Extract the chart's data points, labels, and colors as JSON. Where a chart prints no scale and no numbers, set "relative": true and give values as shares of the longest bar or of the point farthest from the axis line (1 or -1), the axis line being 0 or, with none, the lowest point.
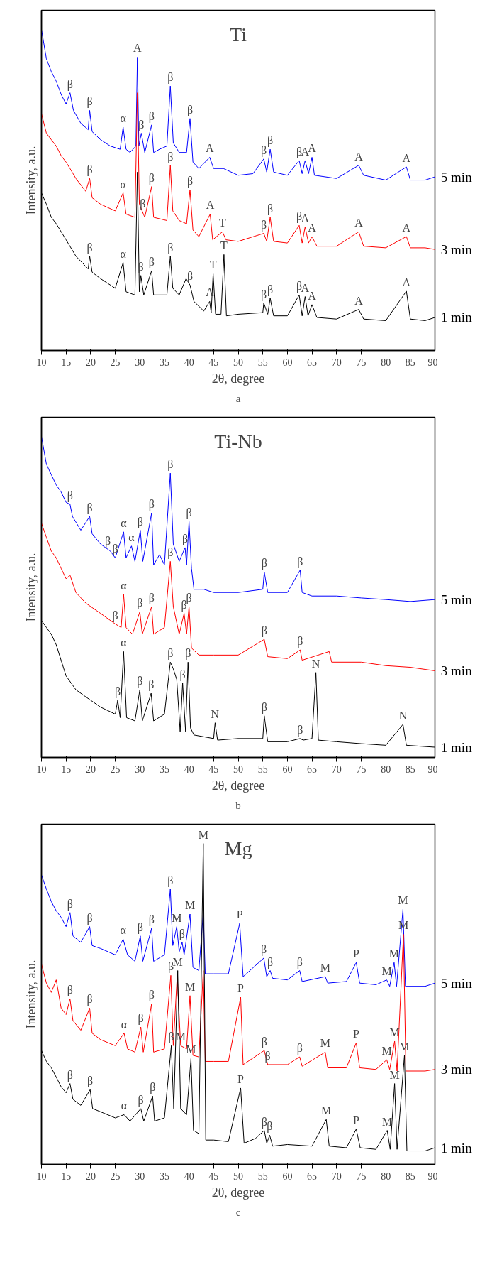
{
  "chart_data": [
    {
      "type": "line",
      "title": "Ti",
      "xlabel": "2θ, degree",
      "ylabel": "Intensity, a.u.",
      "relative": true,
      "xlim": [
        10,
        90
      ],
      "xticks": [
        10,
        15,
        20,
        25,
        30,
        35,
        40,
        45,
        50,
        55,
        60,
        65,
        70,
        75,
        80,
        85,
        90
      ],
      "series": [
        {
          "name": "5 min",
          "color": "#0000ff",
          "x": [
            10,
            11,
            12,
            13,
            14,
            15,
            15.8,
            16.5,
            18,
            19.5,
            19.8,
            20.3,
            22,
            24,
            26,
            26.6,
            27.2,
            28,
            29.2,
            29.5,
            29.8,
            30.3,
            31,
            32.4,
            32.8,
            34,
            35.5,
            36.2,
            36.8,
            38,
            39.5,
            40.2,
            40.8,
            42,
            44.2,
            45,
            47,
            50,
            53,
            55.2,
            55.8,
            56.5,
            57.2,
            60,
            62.4,
            63,
            63.6,
            64.3,
            65,
            65.5,
            70,
            74.5,
            75.5,
            80,
            84.2,
            85,
            88,
            90
          ],
          "values": [
            1.0,
            0.909,
            0.869,
            0.839,
            0.798,
            0.768,
            0.803,
            0.748,
            0.708,
            0.688,
            0.748,
            0.682,
            0.657,
            0.637,
            0.627,
            0.696,
            0.627,
            0.617,
            0.637,
            0.914,
            0.637,
            0.677,
            0.617,
            0.703,
            0.617,
            0.627,
            0.637,
            0.824,
            0.647,
            0.617,
            0.617,
            0.723,
            0.587,
            0.567,
            0.602,
            0.567,
            0.567,
            0.546,
            0.551,
            0.597,
            0.556,
            0.627,
            0.556,
            0.546,
            0.592,
            0.551,
            0.592,
            0.551,
            0.602,
            0.546,
            0.536,
            0.577,
            0.546,
            0.531,
            0.572,
            0.531,
            0.531,
            0.541
          ]
        },
        {
          "name": "3 min",
          "color": "#ff0000",
          "x": [
            10,
            11,
            12,
            13,
            14,
            15,
            15.8,
            17,
            19,
            19.8,
            20.3,
            22,
            25,
            26.6,
            27.2,
            29,
            29.5,
            29.9,
            31,
            32.4,
            32.8,
            35.5,
            36.2,
            36.7,
            38,
            39.5,
            40.2,
            40.8,
            42,
            44.3,
            44.8,
            46.8,
            47.5,
            50,
            55.2,
            55.8,
            56.5,
            57.2,
            60,
            62.4,
            63,
            63.6,
            64.3,
            65,
            66,
            70,
            74.5,
            75.5,
            80,
            84.2,
            85,
            88,
            90
          ],
          "values": [
            0.738,
            0.677,
            0.657,
            0.637,
            0.607,
            0.587,
            0.567,
            0.536,
            0.496,
            0.536,
            0.476,
            0.456,
            0.435,
            0.491,
            0.425,
            0.415,
            0.803,
            0.456,
            0.415,
            0.511,
            0.415,
            0.405,
            0.577,
            0.435,
            0.405,
            0.395,
            0.501,
            0.375,
            0.355,
            0.425,
            0.345,
            0.37,
            0.345,
            0.34,
            0.365,
            0.34,
            0.415,
            0.34,
            0.335,
            0.39,
            0.335,
            0.385,
            0.335,
            0.355,
            0.325,
            0.325,
            0.37,
            0.325,
            0.32,
            0.355,
            0.32,
            0.32,
            0.315
          ]
        },
        {
          "name": "1 min",
          "color": "#000000",
          "x": [
            10,
            11,
            12,
            13,
            15,
            17,
            19.5,
            19.8,
            20.3,
            22,
            25,
            26.6,
            27.2,
            29,
            29.5,
            29.9,
            30.2,
            30.8,
            32.4,
            32.8,
            35.5,
            36.2,
            36.7,
            38,
            39.4,
            40.2,
            41,
            43,
            44.2,
            44.5,
            44.9,
            45.4,
            46.5,
            47.1,
            47.6,
            50,
            55,
            55.2,
            56,
            56.5,
            57.2,
            60,
            62.4,
            63,
            63.6,
            64.2,
            65,
            66,
            70,
            74.5,
            75.5,
            80,
            84.2,
            85,
            88,
            90
          ],
          "values": [
            0.491,
            0.456,
            0.415,
            0.395,
            0.345,
            0.294,
            0.254,
            0.294,
            0.244,
            0.224,
            0.194,
            0.274,
            0.183,
            0.173,
            0.556,
            0.183,
            0.234,
            0.173,
            0.249,
            0.173,
            0.173,
            0.294,
            0.194,
            0.173,
            0.224,
            0.204,
            0.153,
            0.123,
            0.153,
            0.118,
            0.239,
            0.113,
            0.113,
            0.299,
            0.108,
            0.113,
            0.118,
            0.148,
            0.113,
            0.163,
            0.108,
            0.108,
            0.173,
            0.108,
            0.168,
            0.108,
            0.143,
            0.103,
            0.098,
            0.128,
            0.098,
            0.093,
            0.185,
            0.098,
            0.093,
            0.103
          ]
        }
      ],
      "annotations": [
        {
          "text": "β",
          "x": 15.8,
          "y": 0.803
        },
        {
          "text": "β",
          "x": 19.8,
          "y": 0.748
        },
        {
          "text": "α",
          "x": 26.6,
          "y": 0.696
        },
        {
          "text": "A",
          "x": 29.5,
          "y": 0.914
        },
        {
          "text": "β",
          "x": 30.3,
          "y": 0.677
        },
        {
          "text": "β",
          "x": 32.4,
          "y": 0.703
        },
        {
          "text": "β",
          "x": 36.2,
          "y": 0.824
        },
        {
          "text": "β",
          "x": 40.2,
          "y": 0.723
        },
        {
          "text": "A",
          "x": 44.2,
          "y": 0.602
        },
        {
          "text": "β",
          "x": 55.2,
          "y": 0.597
        },
        {
          "text": "β",
          "x": 56.5,
          "y": 0.627
        },
        {
          "text": "β",
          "x": 62.4,
          "y": 0.592
        },
        {
          "text": "A",
          "x": 63.6,
          "y": 0.592
        },
        {
          "text": "A",
          "x": 65,
          "y": 0.602
        },
        {
          "text": "A",
          "x": 74.5,
          "y": 0.577
        },
        {
          "text": "A",
          "x": 84.2,
          "y": 0.572
        },
        {
          "text": "β",
          "x": 19.8,
          "y": 0.536
        },
        {
          "text": "α",
          "x": 26.6,
          "y": 0.491
        },
        {
          "text": "β",
          "x": 30.6,
          "y": 0.43
        },
        {
          "text": "β",
          "x": 32.4,
          "y": 0.511
        },
        {
          "text": "β",
          "x": 36.2,
          "y": 0.577
        },
        {
          "text": "β",
          "x": 40.2,
          "y": 0.501
        },
        {
          "text": "A",
          "x": 44.3,
          "y": 0.425
        },
        {
          "text": "T",
          "x": 46.8,
          "y": 0.37
        },
        {
          "text": "β",
          "x": 55.2,
          "y": 0.365
        },
        {
          "text": "β",
          "x": 56.5,
          "y": 0.415
        },
        {
          "text": "β",
          "x": 62.4,
          "y": 0.39
        },
        {
          "text": "A",
          "x": 63.6,
          "y": 0.385
        },
        {
          "text": "A",
          "x": 65,
          "y": 0.355
        },
        {
          "text": "A",
          "x": 74.5,
          "y": 0.37
        },
        {
          "text": "A",
          "x": 84.2,
          "y": 0.355
        },
        {
          "text": "β",
          "x": 19.8,
          "y": 0.294
        },
        {
          "text": "α",
          "x": 26.6,
          "y": 0.274
        },
        {
          "text": "β",
          "x": 30.2,
          "y": 0.234
        },
        {
          "text": "β",
          "x": 32.4,
          "y": 0.249
        },
        {
          "text": "β",
          "x": 36.2,
          "y": 0.294
        },
        {
          "text": "β",
          "x": 40.2,
          "y": 0.204
        },
        {
          "text": "A",
          "x": 44.2,
          "y": 0.153
        },
        {
          "text": "T",
          "x": 44.9,
          "y": 0.239
        },
        {
          "text": "T",
          "x": 47.1,
          "y": 0.299
        },
        {
          "text": "β",
          "x": 55.2,
          "y": 0.148
        },
        {
          "text": "β",
          "x": 56.5,
          "y": 0.163
        },
        {
          "text": "β",
          "x": 62.4,
          "y": 0.173
        },
        {
          "text": "A",
          "x": 63.6,
          "y": 0.168
        },
        {
          "text": "A",
          "x": 65,
          "y": 0.143
        },
        {
          "text": "A",
          "x": 74.5,
          "y": 0.128
        },
        {
          "text": "A",
          "x": 84.2,
          "y": 0.185
        },
        "a"
      ]
    },
    {
      "type": "line",
      "title": "Ti-Nb",
      "xlabel": "2θ, degree",
      "ylabel": "Intensity, a.u.",
      "relative": true,
      "xlim": [
        10,
        90
      ],
      "xticks": [
        10,
        15,
        20,
        25,
        30,
        35,
        40,
        45,
        50,
        55,
        60,
        65,
        70,
        75,
        80,
        85,
        90
      ],
      "series": [
        {
          "name": "5 min",
          "color": "#0000ff",
          "x": [
            10,
            11,
            12,
            13,
            14,
            15,
            15.8,
            16.3,
            18,
            19.8,
            20.3,
            22,
            24,
            25,
            26.7,
            27.2,
            28.3,
            29,
            30.1,
            30.6,
            32.4,
            32.8,
            34,
            35,
            36.2,
            36.8,
            38,
            39.2,
            39.5,
            40,
            40.5,
            41,
            43,
            45,
            50,
            55,
            55.3,
            56,
            60,
            62.6,
            63,
            65,
            70,
            75,
            80,
            85,
            90
          ],
          "values": [
            1.0,
            0.914,
            0.881,
            0.849,
            0.827,
            0.795,
            0.789,
            0.751,
            0.708,
            0.751,
            0.697,
            0.665,
            0.643,
            0.622,
            0.703,
            0.622,
            0.659,
            0.611,
            0.708,
            0.611,
            0.762,
            0.6,
            0.632,
            0.6,
            0.886,
            0.665,
            0.611,
            0.654,
            0.6,
            0.735,
            0.589,
            0.524,
            0.524,
            0.514,
            0.514,
            0.524,
            0.578,
            0.514,
            0.514,
            0.584,
            0.514,
            0.503,
            0.503,
            0.497,
            0.492,
            0.486,
            0.492
          ]
        },
        {
          "name": "3 min",
          "color": "#ff0000",
          "x": [
            10,
            11,
            12,
            13,
            14,
            15,
            15.8,
            17,
            19,
            22,
            25,
            26.2,
            26.7,
            27.2,
            28.5,
            30,
            30.5,
            32.4,
            32.8,
            35,
            36.2,
            36.8,
            38,
            39,
            39.5,
            40,
            40.5,
            42,
            45,
            50,
            55.3,
            56,
            60,
            62.6,
            63,
            68.5,
            69,
            75,
            80,
            85,
            90
          ],
          "values": [
            0.73,
            0.686,
            0.643,
            0.622,
            0.589,
            0.557,
            0.568,
            0.514,
            0.481,
            0.449,
            0.416,
            0.405,
            0.508,
            0.405,
            0.384,
            0.454,
            0.384,
            0.47,
            0.384,
            0.405,
            0.611,
            0.47,
            0.384,
            0.449,
            0.384,
            0.47,
            0.341,
            0.319,
            0.319,
            0.319,
            0.368,
            0.314,
            0.308,
            0.335,
            0.303,
            0.33,
            0.297,
            0.297,
            0.286,
            0.281,
            0.27
          ]
        },
        {
          "name": "1 min",
          "color": "#000000",
          "x": [
            10,
            11,
            12,
            13,
            15,
            17,
            19,
            22,
            25,
            25.5,
            26,
            26.7,
            27.3,
            29,
            30,
            30.5,
            32.3,
            32.8,
            35,
            36.2,
            36.8,
            37.5,
            38.2,
            38.7,
            39.3,
            39.8,
            40.3,
            41,
            45,
            45.3,
            45.8,
            50,
            55,
            55.3,
            56,
            60,
            62.6,
            63.2,
            65,
            65.8,
            66.3,
            70,
            75,
            80,
            83.5,
            84.2,
            90
          ],
          "values": [
            0.427,
            0.405,
            0.384,
            0.351,
            0.254,
            0.211,
            0.189,
            0.157,
            0.135,
            0.178,
            0.124,
            0.33,
            0.124,
            0.114,
            0.211,
            0.114,
            0.2,
            0.114,
            0.135,
            0.297,
            0.276,
            0.243,
            0.081,
            0.232,
            0.081,
            0.297,
            0.092,
            0.07,
            0.059,
            0.108,
            0.054,
            0.059,
            0.059,
            0.13,
            0.049,
            0.049,
            0.059,
            0.054,
            0.059,
            0.265,
            0.054,
            0.049,
            0.043,
            0.038,
            0.103,
            0.038,
            0.032
          ]
        }
      ],
      "annotations": [
        {
          "text": "β",
          "x": 15.8,
          "y": 0.789
        },
        {
          "text": "β",
          "x": 19.8,
          "y": 0.751
        },
        {
          "text": "β",
          "x": 23.5,
          "y": 0.648
        },
        {
          "text": "β",
          "x": 25,
          "y": 0.622
        },
        {
          "text": "α",
          "x": 26.7,
          "y": 0.703
        },
        {
          "text": "α",
          "x": 28.3,
          "y": 0.659
        },
        {
          "text": "β",
          "x": 30.1,
          "y": 0.708
        },
        {
          "text": "β",
          "x": 32.4,
          "y": 0.762
        },
        {
          "text": "β",
          "x": 36.2,
          "y": 0.886
        },
        {
          "text": "β",
          "x": 39.2,
          "y": 0.654
        },
        {
          "text": "β",
          "x": 40,
          "y": 0.735
        },
        {
          "text": "β",
          "x": 55.3,
          "y": 0.578
        },
        {
          "text": "β",
          "x": 62.6,
          "y": 0.584
        },
        {
          "text": "β",
          "x": 25,
          "y": 0.416
        },
        {
          "text": "α",
          "x": 26.7,
          "y": 0.508
        },
        {
          "text": "β",
          "x": 30,
          "y": 0.454
        },
        {
          "text": "β",
          "x": 32.4,
          "y": 0.47
        },
        {
          "text": "β",
          "x": 36.2,
          "y": 0.611
        },
        {
          "text": "β",
          "x": 39,
          "y": 0.449
        },
        {
          "text": "β",
          "x": 40,
          "y": 0.47
        },
        {
          "text": "β",
          "x": 55.3,
          "y": 0.368
        },
        {
          "text": "β",
          "x": 62.6,
          "y": 0.335
        },
        {
          "text": "β",
          "x": 25.5,
          "y": 0.178
        },
        {
          "text": "α",
          "x": 26.7,
          "y": 0.33
        },
        {
          "text": "β",
          "x": 30,
          "y": 0.211
        },
        {
          "text": "β",
          "x": 32.3,
          "y": 0.2
        },
        {
          "text": "β",
          "x": 36.2,
          "y": 0.297
        },
        {
          "text": "β",
          "x": 38.7,
          "y": 0.232
        },
        {
          "text": "β",
          "x": 39.8,
          "y": 0.297
        },
        {
          "text": "N",
          "x": 45.3,
          "y": 0.108
        },
        {
          "text": "β",
          "x": 55.3,
          "y": 0.13
        },
        {
          "text": "β",
          "x": 62.6,
          "y": 0.059
        },
        {
          "text": "N",
          "x": 65.8,
          "y": 0.265
        },
        {
          "text": "N",
          "x": 83.5,
          "y": 0.103
        },
        "b"
      ]
    },
    {
      "type": "line",
      "title": "Mg",
      "xlabel": "2θ, degree",
      "ylabel": "Intensity, a.u.",
      "relative": true,
      "xlim": [
        10,
        90
      ],
      "xticks": [
        10,
        15,
        20,
        25,
        30,
        35,
        40,
        45,
        50,
        55,
        60,
        65,
        70,
        75,
        80,
        85,
        90
      ],
      "series": [
        {
          "name": "5 min",
          "color": "#0000ff",
          "x": [
            10,
            11,
            12,
            13,
            14,
            15,
            15.8,
            16.4,
            18,
            19.8,
            20.3,
            22,
            25,
            26.6,
            27.5,
            29,
            30.1,
            30.6,
            32.4,
            32.8,
            35,
            36.2,
            36.7,
            37.5,
            38,
            38.6,
            39,
            40.2,
            40.8,
            42,
            42.9,
            43.3,
            45,
            48,
            50.3,
            51,
            55.2,
            55.8,
            56.5,
            57,
            60,
            62.5,
            63,
            67.7,
            68.2,
            72,
            74,
            74.7,
            78,
            80.2,
            80.8,
            81.7,
            82.2,
            83.5,
            84,
            88,
            90
          ],
          "values": [
            0.902,
            0.858,
            0.819,
            0.79,
            0.77,
            0.741,
            0.785,
            0.712,
            0.692,
            0.741,
            0.682,
            0.673,
            0.653,
            0.702,
            0.653,
            0.633,
            0.712,
            0.633,
            0.736,
            0.633,
            0.653,
            0.858,
            0.682,
            0.741,
            0.663,
            0.692,
            0.653,
            0.78,
            0.614,
            0.604,
            0.785,
            0.594,
            0.594,
            0.594,
            0.751,
            0.585,
            0.643,
            0.585,
            0.604,
            0.58,
            0.575,
            0.604,
            0.57,
            0.585,
            0.565,
            0.57,
            0.629,
            0.565,
            0.56,
            0.575,
            0.555,
            0.629,
            0.555,
            0.795,
            0.555,
            0.555,
            0.565
          ]
        },
        {
          "name": "3 min",
          "color": "#ff0000",
          "x": [
            10,
            11,
            12,
            13,
            14,
            15,
            15.8,
            16.4,
            18,
            19.8,
            20.3,
            22,
            25,
            26.8,
            27.5,
            29,
            30.2,
            30.7,
            32.4,
            32.8,
            35,
            36.3,
            36.8,
            37.6,
            38.3,
            39.5,
            40.2,
            40.8,
            42,
            42.9,
            43.3,
            45,
            48,
            50.5,
            51,
            55.3,
            56,
            60,
            62.5,
            63,
            67.7,
            68.2,
            72,
            74,
            74.7,
            78,
            80.2,
            80.8,
            81.8,
            82.3,
            83.6,
            84.1,
            88,
            90
          ],
          "values": [
            0.624,
            0.565,
            0.536,
            0.575,
            0.487,
            0.467,
            0.516,
            0.448,
            0.418,
            0.487,
            0.409,
            0.389,
            0.37,
            0.409,
            0.36,
            0.35,
            0.428,
            0.35,
            0.501,
            0.35,
            0.36,
            0.589,
            0.37,
            0.589,
            0.37,
            0.36,
            0.526,
            0.34,
            0.335,
            0.604,
            0.321,
            0.321,
            0.321,
            0.521,
            0.311,
            0.355,
            0.311,
            0.311,
            0.335,
            0.306,
            0.35,
            0.301,
            0.301,
            0.379,
            0.301,
            0.296,
            0.326,
            0.296,
            0.384,
            0.291,
            0.717,
            0.291,
            0.291,
            0.296
          ]
        },
        {
          "name": "1 min",
          "color": "#000000",
          "x": [
            10,
            11,
            12,
            13,
            14,
            15,
            15.8,
            16.4,
            18,
            19.9,
            20.4,
            22,
            25,
            26.8,
            28,
            30.2,
            30.8,
            32.6,
            33,
            35,
            36.4,
            36.9,
            37.7,
            38.3,
            39.5,
            40.4,
            40.9,
            42,
            42.9,
            43.4,
            45,
            48,
            50.5,
            51.2,
            53.5,
            55.3,
            55.8,
            56.4,
            57,
            60,
            65,
            67.9,
            68.5,
            72,
            74,
            74.8,
            78,
            80.3,
            80.9,
            81.8,
            82.3,
            83.8,
            84.3,
            88,
            90
          ],
          "values": [
            0.355,
            0.321,
            0.301,
            0.272,
            0.242,
            0.223,
            0.252,
            0.203,
            0.184,
            0.233,
            0.174,
            0.164,
            0.145,
            0.155,
            0.135,
            0.174,
            0.135,
            0.213,
            0.135,
            0.145,
            0.37,
            0.174,
            0.604,
            0.174,
            0.155,
            0.33,
            0.106,
            0.096,
            1.0,
            0.076,
            0.076,
            0.071,
            0.238,
            0.066,
            0.081,
            0.106,
            0.066,
            0.091,
            0.057,
            0.062,
            0.057,
            0.14,
            0.057,
            0.052,
            0.11,
            0.052,
            0.047,
            0.106,
            0.047,
            0.252,
            0.047,
            0.34,
            0.042,
            0.042,
            0.052
          ]
        }
      ],
      "annotations": [
        {
          "text": "β",
          "x": 15.8,
          "y": 0.785
        },
        {
          "text": "β",
          "x": 19.8,
          "y": 0.741
        },
        {
          "text": "α",
          "x": 26.6,
          "y": 0.702
        },
        {
          "text": "β",
          "x": 30.1,
          "y": 0.712
        },
        {
          "text": "β",
          "x": 32.4,
          "y": 0.736
        },
        {
          "text": "β",
          "x": 36.2,
          "y": 0.858
        },
        {
          "text": "M",
          "x": 37.5,
          "y": 0.741
        },
        {
          "text": "β",
          "x": 38.6,
          "y": 0.692
        },
        {
          "text": "M",
          "x": 40.2,
          "y": 0.78
        },
        {
          "text": "M",
          "x": 42.9,
          "y": 1.0
        },
        {
          "text": "P",
          "x": 50.3,
          "y": 0.751
        },
        {
          "text": "β",
          "x": 55.2,
          "y": 0.643
        },
        {
          "text": "β",
          "x": 56.5,
          "y": 0.604
        },
        {
          "text": "β",
          "x": 62.5,
          "y": 0.604
        },
        {
          "text": "M",
          "x": 67.7,
          "y": 0.585
        },
        {
          "text": "P",
          "x": 74,
          "y": 0.629
        },
        {
          "text": "M",
          "x": 80.2,
          "y": 0.575
        },
        {
          "text": "M",
          "x": 81.7,
          "y": 0.629
        },
        {
          "text": "M",
          "x": 83.5,
          "y": 0.795
        },
        {
          "text": "β",
          "x": 15.8,
          "y": 0.516
        },
        {
          "text": "β",
          "x": 19.8,
          "y": 0.487
        },
        {
          "text": "α",
          "x": 26.8,
          "y": 0.409
        },
        {
          "text": "β",
          "x": 30.2,
          "y": 0.428
        },
        {
          "text": "β",
          "x": 32.4,
          "y": 0.501
        },
        {
          "text": "β",
          "x": 36.3,
          "y": 0.589
        },
        {
          "text": "M",
          "x": 38.3,
          "y": 0.37
        },
        {
          "text": "M",
          "x": 40.2,
          "y": 0.526
        },
        {
          "text": "P",
          "x": 50.5,
          "y": 0.521
        },
        {
          "text": "β",
          "x": 55.3,
          "y": 0.355
        },
        {
          "text": "β",
          "x": 56,
          "y": 0.311
        },
        {
          "text": "β",
          "x": 62.5,
          "y": 0.335
        },
        {
          "text": "M",
          "x": 67.7,
          "y": 0.35
        },
        {
          "text": "P",
          "x": 74,
          "y": 0.379
        },
        {
          "text": "M",
          "x": 80.2,
          "y": 0.326
        },
        {
          "text": "M",
          "x": 81.8,
          "y": 0.384
        },
        {
          "text": "M",
          "x": 83.6,
          "y": 0.717
        },
        {
          "text": "β",
          "x": 15.8,
          "y": 0.252
        },
        {
          "text": "β",
          "x": 19.9,
          "y": 0.233
        },
        {
          "text": "α",
          "x": 26.8,
          "y": 0.155
        },
        {
          "text": "β",
          "x": 30.2,
          "y": 0.174
        },
        {
          "text": "β",
          "x": 32.6,
          "y": 0.213
        },
        {
          "text": "β",
          "x": 36.4,
          "y": 0.37
        },
        {
          "text": "M",
          "x": 37.7,
          "y": 0.604
        },
        {
          "text": "M",
          "x": 40.4,
          "y": 0.33
        },
        {
          "text": "P",
          "x": 50.5,
          "y": 0.238
        },
        {
          "text": "β",
          "x": 55.3,
          "y": 0.106
        },
        {
          "text": "β",
          "x": 56.4,
          "y": 0.091
        },
        {
          "text": "M",
          "x": 67.9,
          "y": 0.14
        },
        {
          "text": "P",
          "x": 74,
          "y": 0.11
        },
        {
          "text": "M",
          "x": 80.3,
          "y": 0.106
        },
        {
          "text": "M",
          "x": 81.8,
          "y": 0.252
        },
        {
          "text": "M",
          "x": 83.8,
          "y": 0.34
        },
        "c"
      ]
    }
  ]
}
